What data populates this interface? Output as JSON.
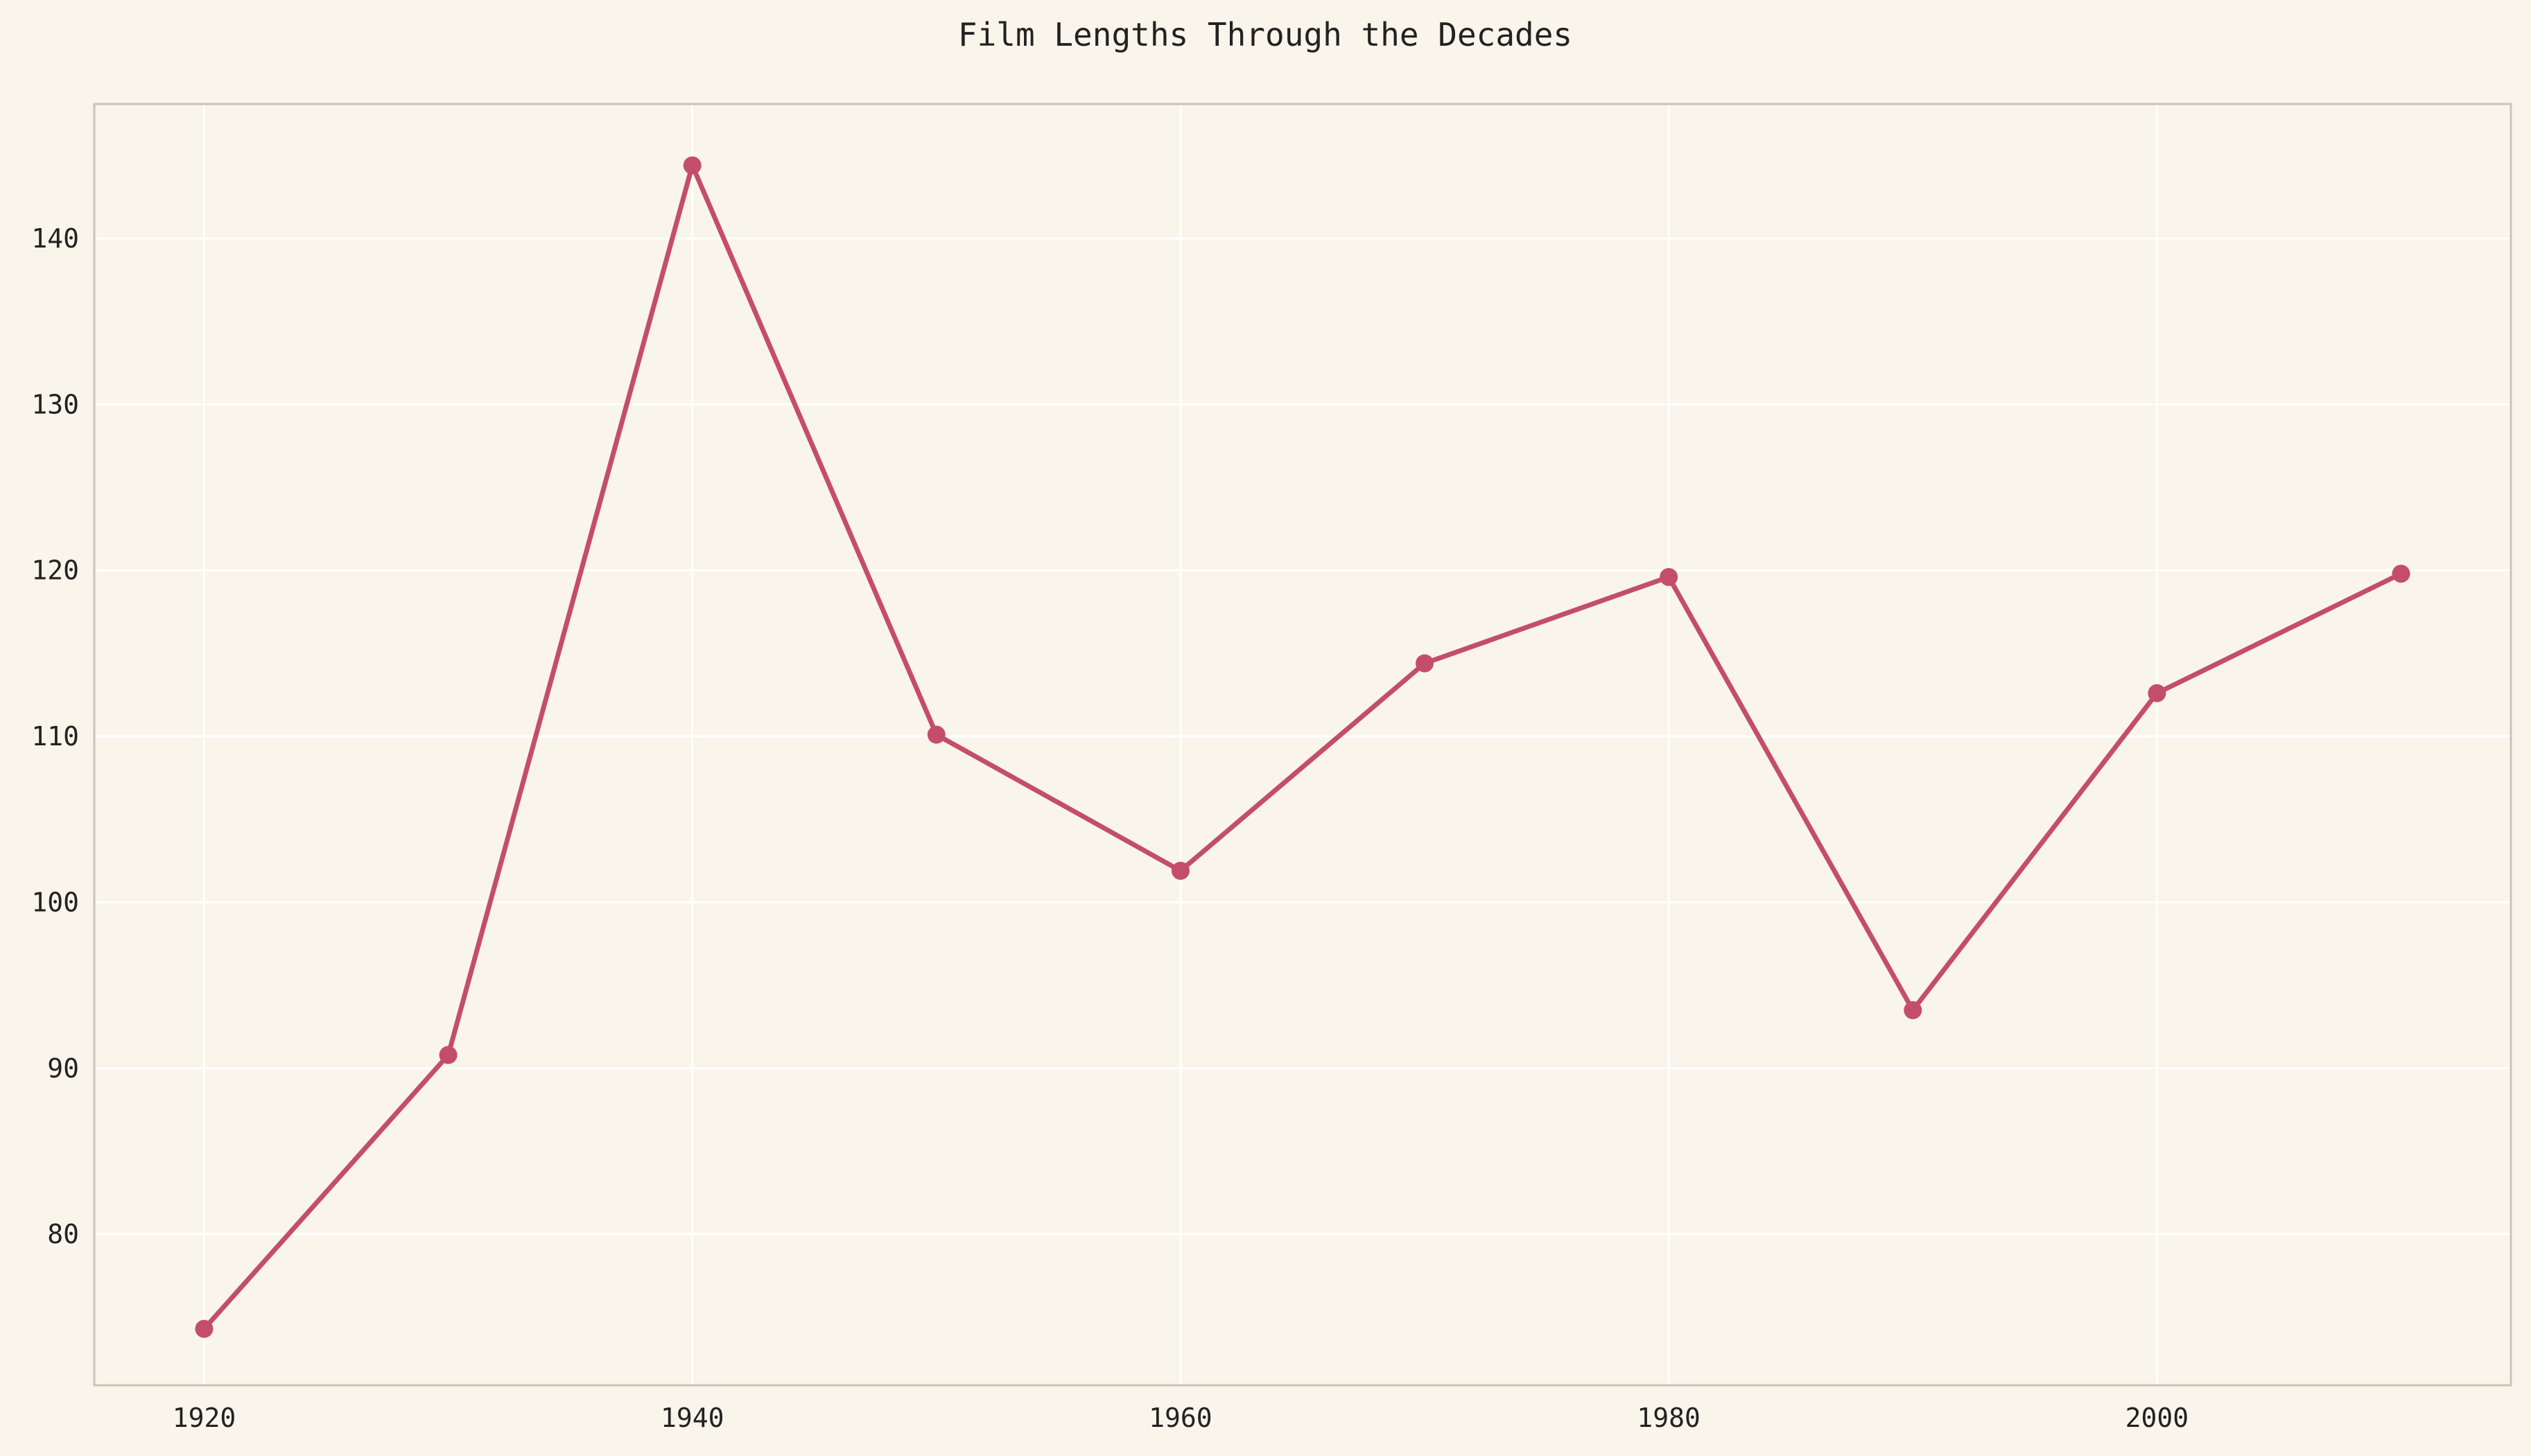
{
  "chart_data": {
    "type": "line",
    "title": "Film Lengths Through the Decades",
    "xlabel": "",
    "ylabel": "",
    "x": [
      1920,
      1930,
      1940,
      1950,
      1960,
      1970,
      1980,
      1990,
      2000,
      2010
    ],
    "series": [
      {
        "values": [
          74.3,
          90.8,
          144.4,
          110.1,
          101.9,
          114.4,
          119.6,
          93.5,
          112.6,
          119.8
        ]
      }
    ],
    "xticks": [
      "1920",
      "1940",
      "1960",
      "1980",
      "2000"
    ],
    "yticks": [
      "80",
      "90",
      "100",
      "110",
      "120",
      "130",
      "140"
    ],
    "xlim": [
      1915.5,
      2014.5
    ],
    "ylim": [
      70.9,
      148.1
    ],
    "grid": true,
    "colors": {
      "background": "#f9f5ea",
      "grid": "#ffffff",
      "frame": "#c8c4b8",
      "line": "#c44e6a",
      "text": "#222222"
    }
  }
}
